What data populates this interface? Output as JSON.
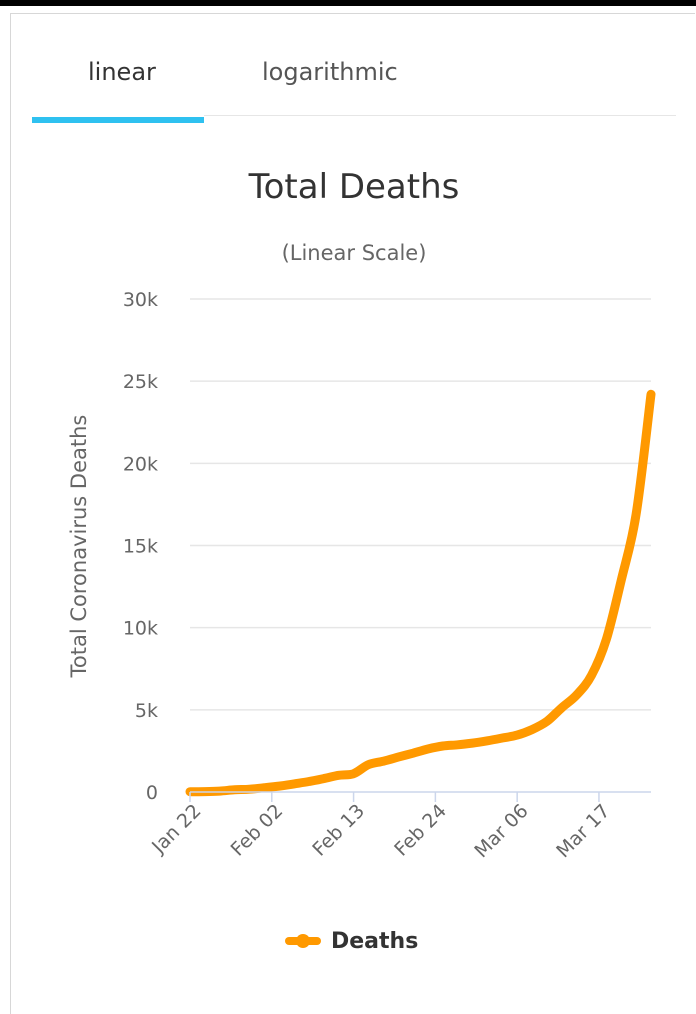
{
  "tabs": [
    {
      "label": "linear",
      "active": true
    },
    {
      "label": "logarithmic",
      "active": false
    }
  ],
  "colors": {
    "accent": "#2fc1f0",
    "series": "#ff9900",
    "grid": "#e6e6e6",
    "axis_line": "#ccd6eb"
  },
  "chart_data": {
    "type": "line",
    "title": "Total Deaths",
    "subtitle": "(Linear Scale)",
    "ylabel": "Total Coronavirus Deaths",
    "xlabel": "",
    "ylim": [
      0,
      30000
    ],
    "yticks": [
      0,
      5000,
      10000,
      15000,
      20000,
      25000,
      30000
    ],
    "ytick_labels": [
      "0",
      "5k",
      "10k",
      "15k",
      "20k",
      "25k",
      "30k"
    ],
    "xlim": [
      "Jan 22",
      "Mar 24"
    ],
    "xtick_labels": [
      "Jan 22",
      "Feb 02",
      "Feb 13",
      "Feb 24",
      "Mar 06",
      "Mar 17"
    ],
    "grid": true,
    "legend": "bottom",
    "series": [
      {
        "name": "Deaths",
        "x": [
          "Jan 22",
          "Jan 24",
          "Jan 26",
          "Jan 28",
          "Jan 30",
          "Feb 01",
          "Feb 03",
          "Feb 05",
          "Feb 07",
          "Feb 09",
          "Feb 11",
          "Feb 13",
          "Feb 15",
          "Feb 17",
          "Feb 19",
          "Feb 21",
          "Feb 23",
          "Feb 25",
          "Feb 27",
          "Feb 29",
          "Mar 02",
          "Mar 04",
          "Mar 06",
          "Mar 08",
          "Mar 10",
          "Mar 12",
          "Mar 14",
          "Mar 16",
          "Mar 18",
          "Mar 20",
          "Mar 22",
          "Mar 24"
        ],
        "values": [
          17,
          26,
          56,
          133,
          170,
          259,
          362,
          493,
          638,
          813,
          1018,
          1115,
          1665,
          1873,
          2122,
          2362,
          2619,
          2801,
          2872,
          2978,
          3116,
          3285,
          3460,
          3800,
          4298,
          5130,
          5900,
          7100,
          9300,
          12900,
          16900,
          24200
        ]
      }
    ]
  }
}
